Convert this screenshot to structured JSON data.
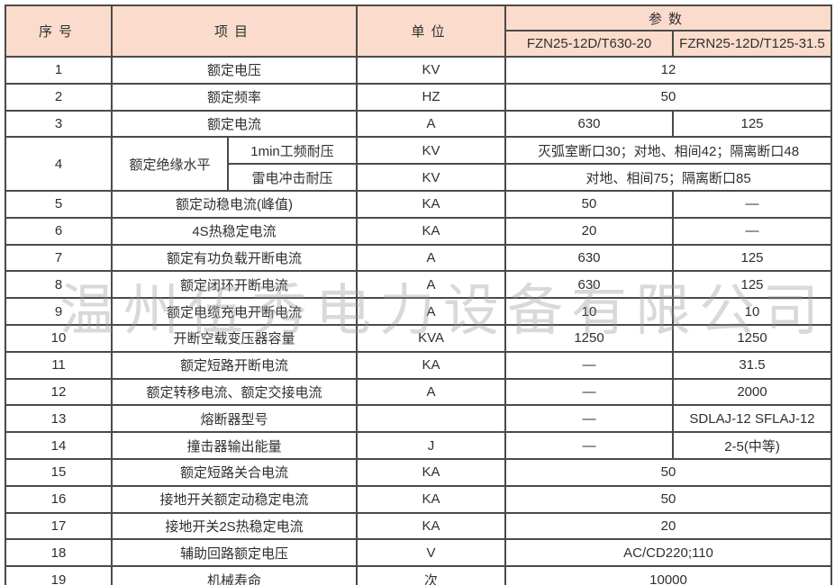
{
  "watermark": "温州伍秀电力设备有限公司",
  "colors": {
    "header_bg": "#fbdccc",
    "border": "#4a4a4a",
    "text": "#2f2f2f",
    "watermark_gray": "#919191"
  },
  "header": {
    "no": "序号",
    "item": "项目",
    "unit": "单位",
    "params": "参数",
    "model_left": "FZN25-12D/T630-20",
    "model_right": "FZRN25-12D/T125-31.5"
  },
  "rows": [
    {
      "no": "1",
      "item": "额定电压",
      "item_align": "center",
      "unit": "KV",
      "merged": "12"
    },
    {
      "no": "2",
      "item": "额定频率",
      "item_align": "center",
      "unit": "HZ",
      "merged": "50"
    },
    {
      "no": "3",
      "item": "额定电流",
      "item_align": "center",
      "unit": "A",
      "v1": "630",
      "v2": "125"
    },
    {
      "no": "4",
      "no_rowspan": 2,
      "group": "额定绝缘水平",
      "item": "1min工频耐压",
      "item_align": "center",
      "sub": true,
      "unit": "KV",
      "merged": "灭弧室断口30；对地、相间42；隔离断口48"
    },
    {
      "continuation": true,
      "item": "雷电冲击耐压",
      "item_align": "center",
      "sub": true,
      "unit": "KV",
      "merged": "对地、相间75；隔离断口85"
    },
    {
      "no": "5",
      "item": "额定动稳电流(峰值)",
      "unit": "KA",
      "v1": "50",
      "v2": "—"
    },
    {
      "no": "6",
      "item": "4S热稳定电流",
      "unit": "KA",
      "v1": "20",
      "v2": "—"
    },
    {
      "no": "7",
      "item": "额定有功负载开断电流",
      "unit": "A",
      "v1": "630",
      "v2": "125"
    },
    {
      "no": "8",
      "item": "额定闭环开断电流",
      "unit": "A",
      "v1": "630",
      "v2": "125"
    },
    {
      "no": "9",
      "item": "额定电缆充电开断电流",
      "unit": "A",
      "v1": "10",
      "v2": "10"
    },
    {
      "no": "10",
      "item": "开断空载变压器容量",
      "unit": "KVA",
      "v1": "1250",
      "v2": "1250"
    },
    {
      "no": "11",
      "item": "额定短路开断电流",
      "unit": "KA",
      "v1": "—",
      "v2": "31.5"
    },
    {
      "no": "12",
      "item": "额定转移电流、额定交接电流",
      "unit": "A",
      "v1": "—",
      "v2": "2000"
    },
    {
      "no": "13",
      "item": "熔断器型号",
      "unit": "",
      "v1": "—",
      "v2": "SDLAJ-12 SFLAJ-12"
    },
    {
      "no": "14",
      "item": "撞击器输出能量",
      "unit": "J",
      "v1": "—",
      "v2": "2-5(中等)"
    },
    {
      "no": "15",
      "item": "额定短路关合电流",
      "unit": "KA",
      "merged": "50"
    },
    {
      "no": "16",
      "item": "接地开关额定动稳定电流",
      "unit": "KA",
      "merged": "50"
    },
    {
      "no": "17",
      "item": "接地开关2S热稳定电流",
      "unit": "KA",
      "merged": "20"
    },
    {
      "no": "18",
      "item": "辅助回路额定电压",
      "unit": "V",
      "merged": "AC/CD220;110"
    },
    {
      "no": "19",
      "item": "机械寿命",
      "unit": "次",
      "merged": "10000"
    }
  ]
}
